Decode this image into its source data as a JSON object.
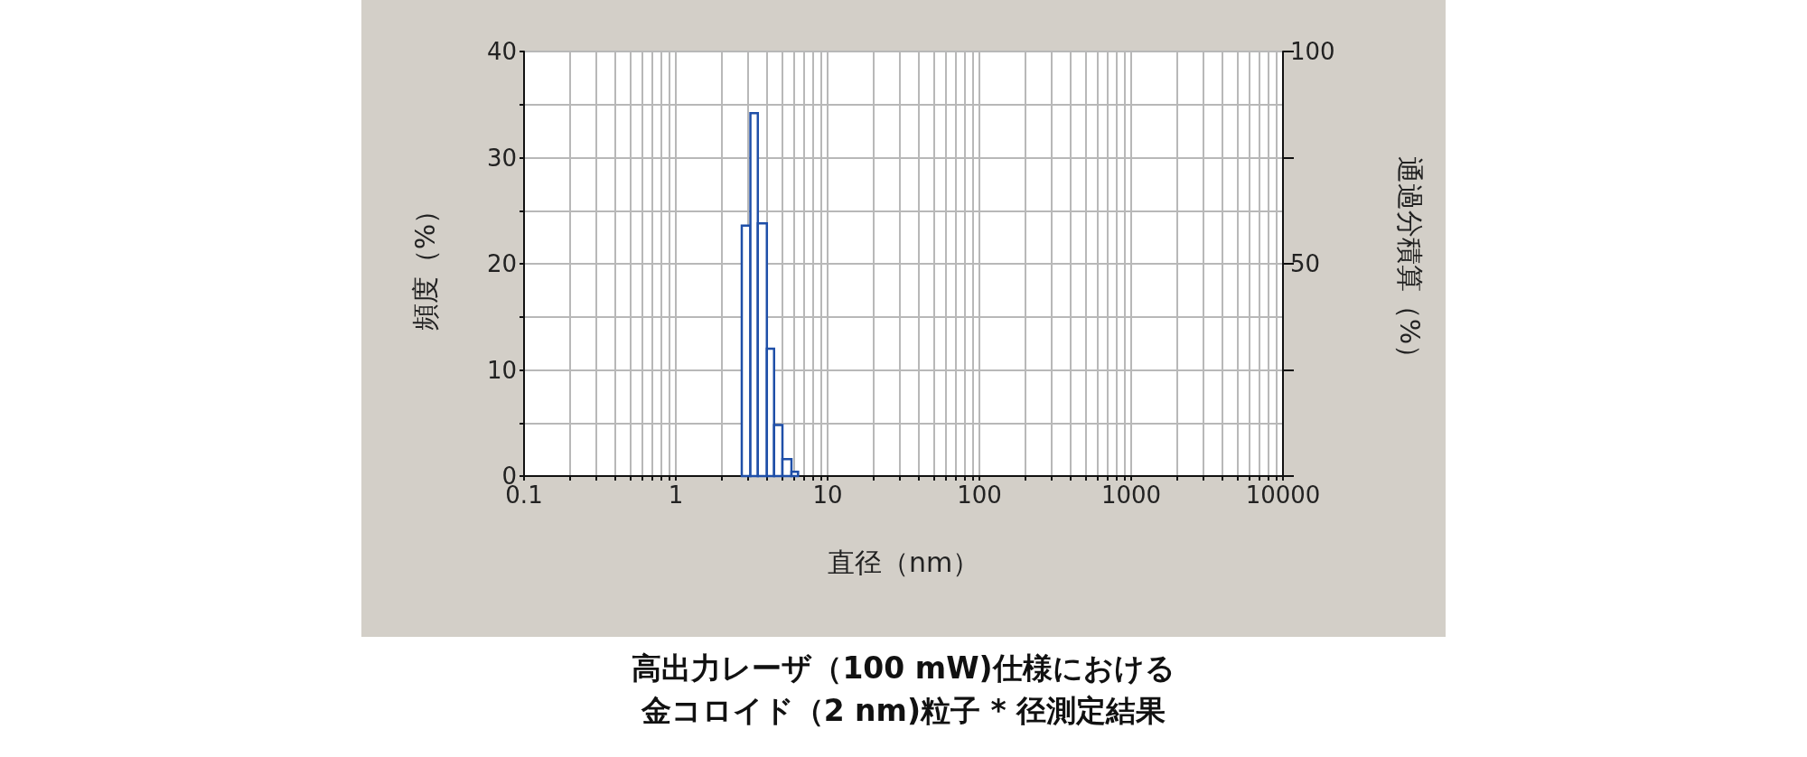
{
  "chart_data": {
    "type": "histogram",
    "title": "高出力レーザ（100 mW)仕様における",
    "subtitle": "金コロイド（2 nm)粒子 * 径測定結果",
    "xlabel": "直径（nm）",
    "ylabel": "頻度（%）",
    "y2label": "通過分積算（%）",
    "log": "x",
    "grid": true,
    "color": "#1f4fa8",
    "bins": [
      2.72,
      3.1,
      3.47,
      3.98,
      4.44,
      5.04,
      5.78,
      6.39
    ],
    "values": [
      23.6,
      34.2,
      23.8,
      12.0,
      4.8,
      1.6,
      0.4
    ],
    "xlim": [
      0.1,
      10000
    ],
    "xticks": [
      0.1,
      {
        "value": 0.2,
        "label": null
      },
      {
        "value": 0.3,
        "label": null
      },
      {
        "value": 0.4,
        "label": null
      },
      {
        "value": 0.5,
        "label": null
      },
      {
        "value": 0.6,
        "label": null
      },
      {
        "value": 0.7,
        "label": null
      },
      {
        "value": 0.8,
        "label": null
      },
      {
        "value": 0.9,
        "label": null
      },
      1,
      {
        "value": 2,
        "label": null
      },
      {
        "value": 3,
        "label": null
      },
      {
        "value": 4,
        "label": null
      },
      {
        "value": 5,
        "label": null
      },
      {
        "value": 6,
        "label": null
      },
      {
        "value": 7,
        "label": null
      },
      {
        "value": 8,
        "label": null
      },
      {
        "value": 9,
        "label": null
      },
      10,
      {
        "value": 20,
        "label": null
      },
      {
        "value": 30,
        "label": null
      },
      {
        "value": 40,
        "label": null
      },
      {
        "value": 50,
        "label": null
      },
      {
        "value": 60,
        "label": null
      },
      {
        "value": 70,
        "label": null
      },
      {
        "value": 80,
        "label": null
      },
      {
        "value": 90,
        "label": null
      },
      100,
      {
        "value": 200,
        "label": null
      },
      {
        "value": 300,
        "label": null
      },
      {
        "value": 400,
        "label": null
      },
      {
        "value": 500,
        "label": null
      },
      {
        "value": 600,
        "label": null
      },
      {
        "value": 700,
        "label": null
      },
      {
        "value": 800,
        "label": null
      },
      {
        "value": 900,
        "label": null
      },
      1000,
      {
        "value": 2000,
        "label": null
      },
      {
        "value": 3000,
        "label": null
      },
      {
        "value": 4000,
        "label": null
      },
      {
        "value": 5000,
        "label": null
      },
      {
        "value": 6000,
        "label": null
      },
      {
        "value": 7000,
        "label": null
      },
      {
        "value": 8000,
        "label": null
      },
      {
        "value": 9000,
        "label": null
      },
      10000
    ],
    "ylim": [
      0,
      40
    ],
    "yticks": [
      0,
      {
        "value": 5,
        "label": null
      },
      10,
      {
        "value": 15,
        "label": null
      },
      20,
      {
        "value": 25,
        "label": null
      },
      30,
      {
        "value": 35,
        "label": null
      },
      40
    ],
    "y2lim": [
      0,
      100
    ],
    "y2ticks": [
      {
        "value": 0,
        "label": null
      },
      {
        "value": 25,
        "label": null
      },
      50,
      {
        "value": 75,
        "label": null
      },
      100
    ]
  }
}
